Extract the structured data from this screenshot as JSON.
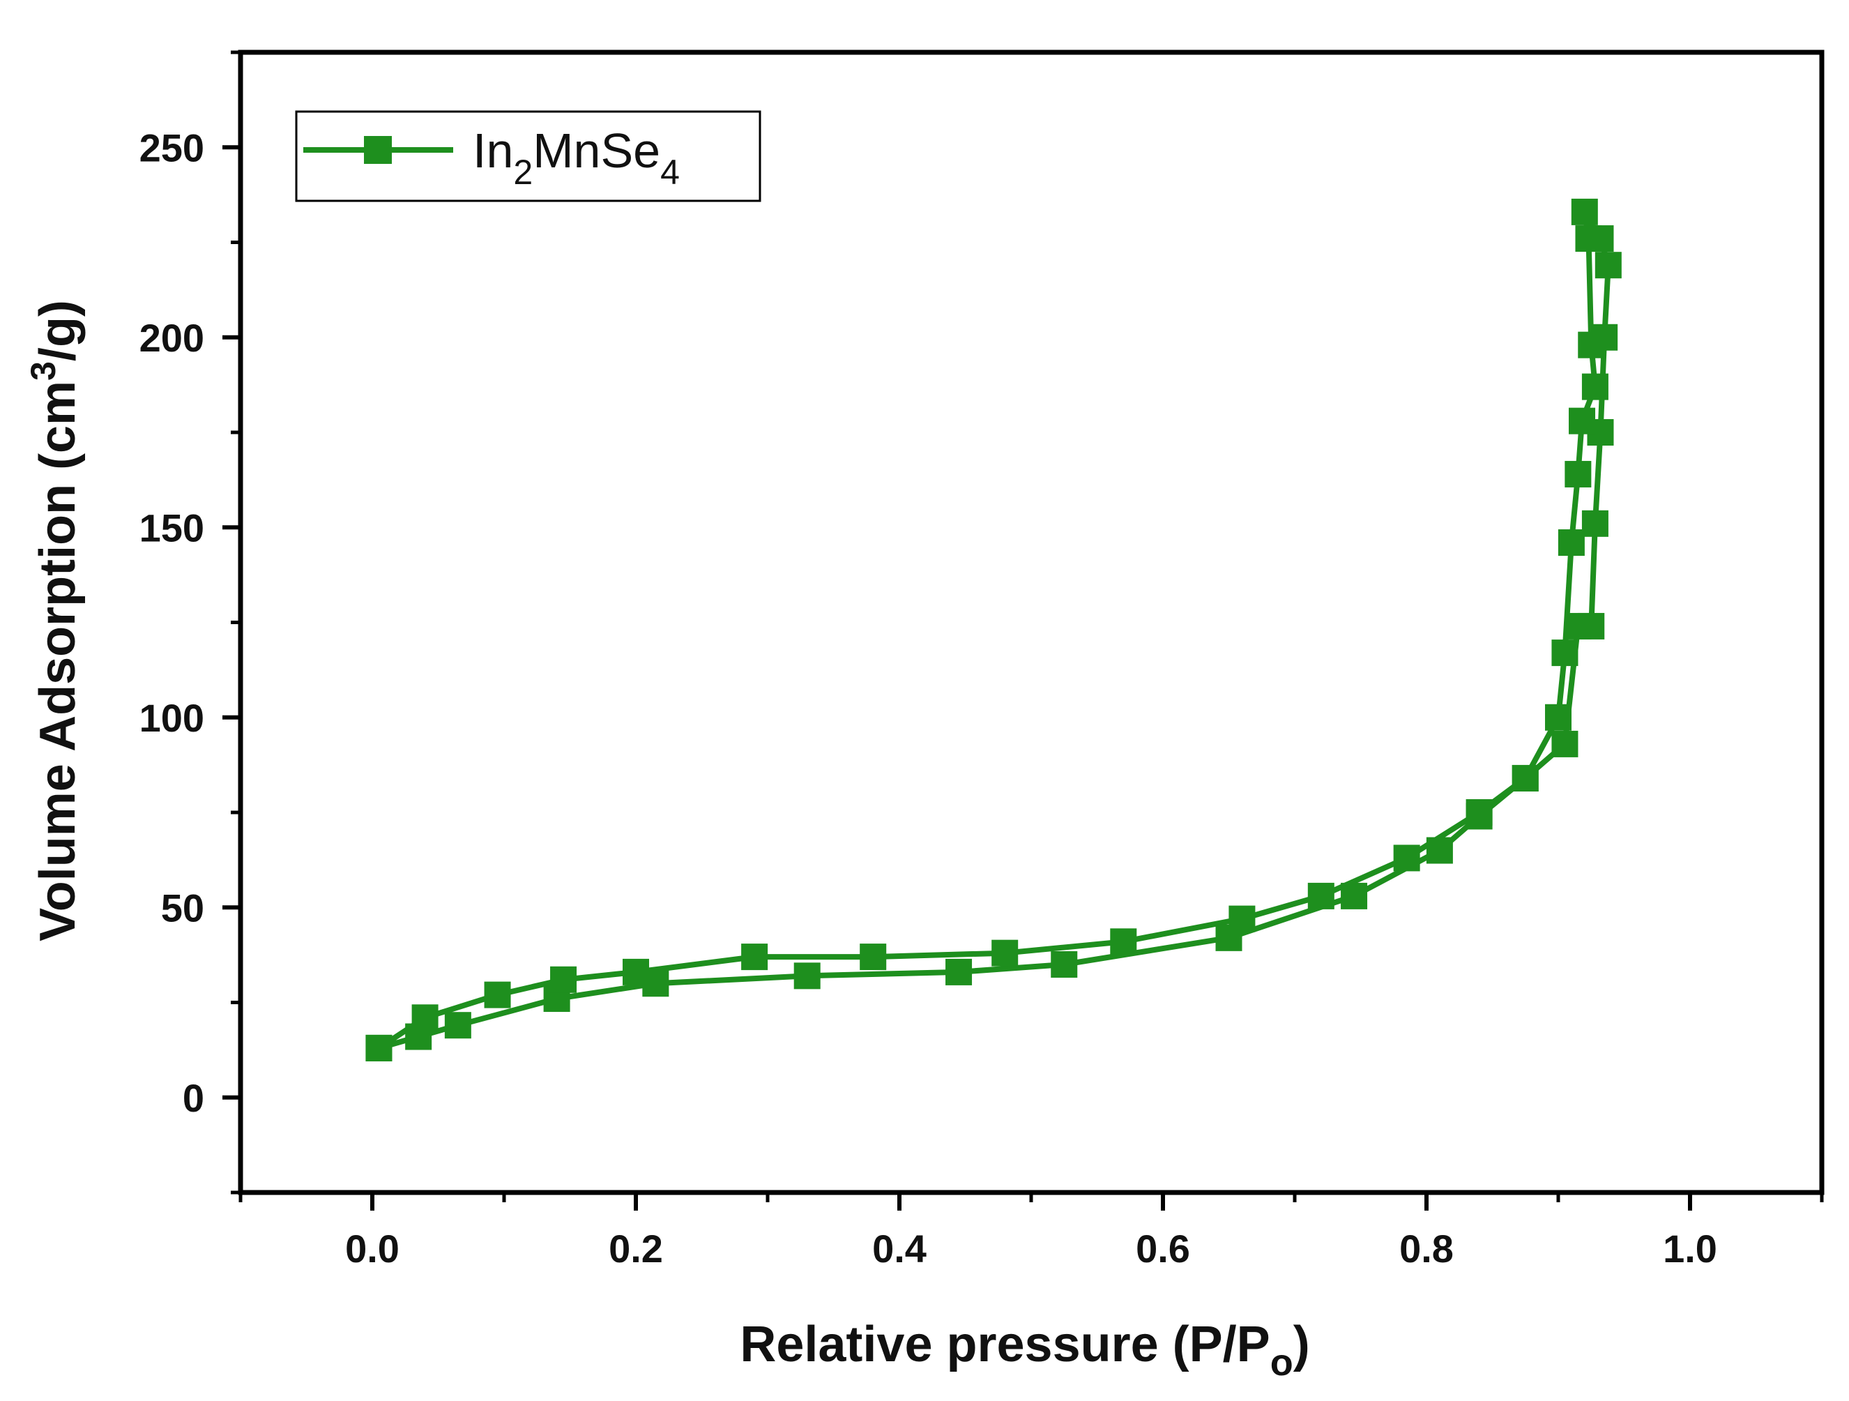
{
  "chart_data": {
    "type": "line",
    "title": "",
    "xlabel": "Relative pressure (P/P",
    "xlabel_sub": "o",
    "xlabel_end": ")",
    "ylabel": "Volume Adsorption (cm",
    "ylabel_sup": "3",
    "ylabel_end": "/g)",
    "xlim": [
      -0.1,
      1.1
    ],
    "ylim": [
      -25,
      275
    ],
    "xticks": [
      0.0,
      0.2,
      0.4,
      0.6,
      0.8,
      1.0
    ],
    "xtick_labels": [
      "0.0",
      "0.2",
      "0.4",
      "0.6",
      "0.8",
      "1.0"
    ],
    "yticks": [
      0,
      50,
      100,
      150,
      200,
      250
    ],
    "ytick_labels": [
      "0",
      "50",
      "100",
      "150",
      "200",
      "250"
    ],
    "legend": {
      "position": "top-left",
      "label_base": "In",
      "label_sub1": "2",
      "label_mid": "MnSe",
      "label_sub2": "4"
    },
    "series": [
      {
        "name": "In2MnSe4",
        "color": "#1e8f1e",
        "marker": "square",
        "x": [
          0.005,
          0.035,
          0.065,
          0.14,
          0.215,
          0.33,
          0.445,
          0.525,
          0.65,
          0.745,
          0.81,
          0.84,
          0.875,
          0.905,
          0.915,
          0.925,
          0.928,
          0.932,
          0.935,
          0.938,
          0.932,
          0.92,
          0.923,
          0.925,
          0.928,
          0.918,
          0.915,
          0.91,
          0.905,
          0.9,
          0.875,
          0.84,
          0.785,
          0.72,
          0.66,
          0.57,
          0.48,
          0.38,
          0.29,
          0.2,
          0.145,
          0.095,
          0.04,
          0.005
        ],
        "y": [
          13,
          16,
          19,
          26,
          30,
          32,
          33,
          35,
          42,
          53,
          65,
          74,
          84,
          93,
          124,
          124,
          151,
          175,
          200,
          219,
          226,
          233,
          226,
          198,
          187,
          178,
          164,
          146,
          117,
          100,
          84,
          75,
          63,
          53,
          47,
          41,
          38,
          37,
          37,
          33,
          31,
          27,
          21,
          13
        ]
      }
    ]
  }
}
